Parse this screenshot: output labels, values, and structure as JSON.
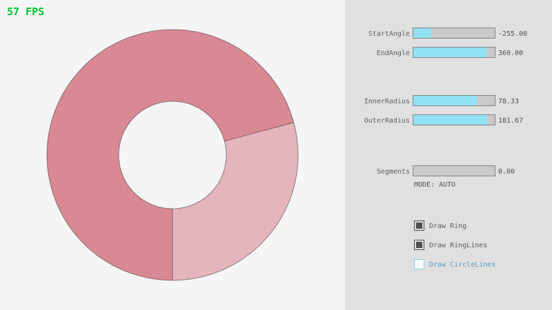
{
  "fps_label": "57 FPS",
  "ring": {
    "start_angle": -255.0,
    "end_angle": 360.0,
    "inner_radius": 78.33,
    "outer_radius": 181.67,
    "colors": {
      "ring_overlap": "#d98994",
      "ring_single": "#e4b5bc",
      "outline": "rgba(0,0,0,0.4)"
    }
  },
  "panel": {
    "sliders": [
      {
        "label": "StartAngle",
        "value": "-255.00",
        "fill": 0.217
      },
      {
        "label": "EndAngle",
        "value": "360.00",
        "fill": 0.9
      },
      {
        "label": "InnerRadius",
        "value": "78.33",
        "fill": 0.783
      },
      {
        "label": "OuterRadius",
        "value": "181.67",
        "fill": 0.908
      },
      {
        "label": "Segments",
        "value": "0.00",
        "fill": 0
      }
    ],
    "mode_label": "MODE: AUTO",
    "checkboxes": [
      {
        "label": "Draw Ring",
        "checked": true
      },
      {
        "label": "Draw RingLines",
        "checked": true
      },
      {
        "label": "Draw CircleLines",
        "checked": false
      }
    ]
  },
  "colors": {
    "fps_green": "#00c32c",
    "accent_cyan": "#92e2f5",
    "focused_blue": "#5499c7",
    "panel_bg": "#e0e0e0",
    "page_bg": "#f5f5f5"
  }
}
